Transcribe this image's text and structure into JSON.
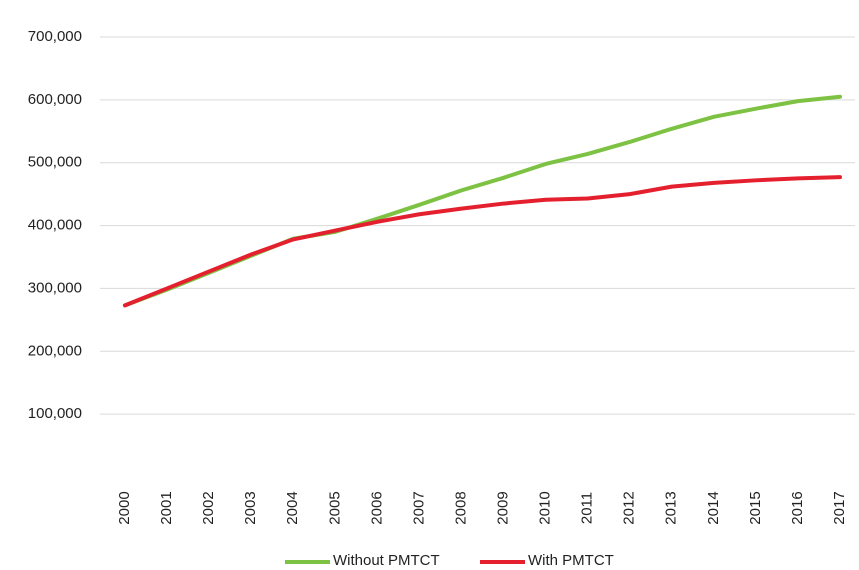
{
  "chart_data": {
    "type": "line",
    "categories": [
      "2000",
      "2001",
      "2002",
      "2003",
      "2004",
      "2005",
      "2006",
      "2007",
      "2008",
      "2009",
      "2010",
      "2011",
      "2012",
      "2013",
      "2014",
      "2015",
      "2016",
      "2017"
    ],
    "series": [
      {
        "name": "Without PMTCT",
        "color": "#7dc242",
        "values": [
          273000,
          298000,
          325000,
          352000,
          379000,
          390000,
          411000,
          433000,
          456000,
          476000,
          498000,
          514000,
          533000,
          554000,
          573000,
          586000,
          598000,
          605000
        ]
      },
      {
        "name": "With PMTCT",
        "color": "#e4202f",
        "values": [
          273000,
          300000,
          327000,
          354000,
          378000,
          392000,
          406000,
          418000,
          427000,
          435000,
          441000,
          443000,
          450000,
          462000,
          468000,
          472000,
          475000,
          477000
        ]
      }
    ],
    "ylim": [
      0,
      700000
    ],
    "yticks": [
      {
        "value": 100000,
        "label": "100,000"
      },
      {
        "value": 200000,
        "label": "200,000"
      },
      {
        "value": 300000,
        "label": "300,000"
      },
      {
        "value": 400000,
        "label": "400,000"
      },
      {
        "value": 500000,
        "label": "500,000"
      },
      {
        "value": 600000,
        "label": "600,000"
      },
      {
        "value": 700000,
        "label": "700,000"
      }
    ],
    "grid": true,
    "legend": "bottom"
  }
}
